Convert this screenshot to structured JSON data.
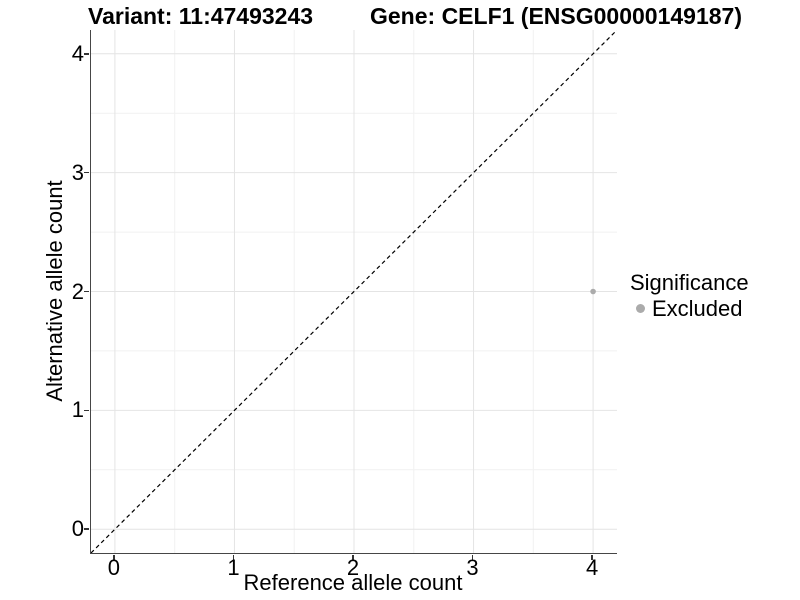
{
  "header": {
    "variant_title": "Variant: 11:47493243",
    "gene_title": "Gene: CELF1 (ENSG00000149187)"
  },
  "legend": {
    "title": "Significance",
    "items": [
      {
        "label": "Excluded",
        "color": "#ababab"
      }
    ]
  },
  "chart_data": {
    "type": "scatter",
    "title": "Variant: 11:47493243 — Gene: CELF1 (ENSG00000149187)",
    "xlabel": "Reference allele count",
    "ylabel": "Alternative allele count",
    "xlim": [
      -0.2,
      4.2
    ],
    "ylim": [
      -0.2,
      4.2
    ],
    "x_ticks": [
      0,
      1,
      2,
      3,
      4
    ],
    "y_ticks": [
      0,
      1,
      2,
      3,
      4
    ],
    "x_minor_ticks": [
      0.5,
      1.5,
      2.5,
      3.5
    ],
    "y_minor_ticks": [
      0.5,
      1.5,
      2.5,
      3.5
    ],
    "grid": true,
    "legend_position": "right",
    "reference_line": {
      "type": "identity",
      "equation": "y = x",
      "style": "dashed",
      "color": "#000000",
      "x1": -0.2,
      "y1": -0.2,
      "x2": 4.2,
      "y2": 4.2
    },
    "series": [
      {
        "name": "Excluded",
        "color": "#ababab",
        "point_radius": 2.8,
        "points": [
          {
            "x": 4,
            "y": 2
          }
        ]
      }
    ],
    "colors": {
      "background": "#ffffff",
      "grid_major": "#e4e4e4",
      "grid_minor": "#f1f1f1",
      "axis_line": "#464646",
      "tick_mark": "#333333",
      "text": "#000000"
    }
  }
}
